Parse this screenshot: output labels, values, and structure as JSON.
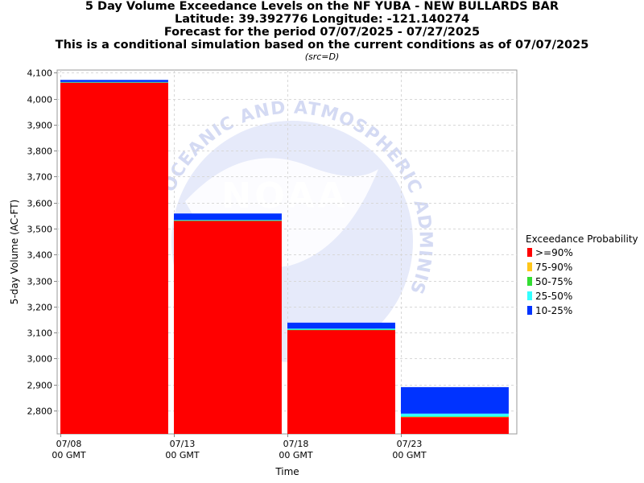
{
  "header": {
    "title_lines": [
      "5 Day Volume Exceedance Levels on the NF YUBA - NEW BULLARDS BAR",
      "Latitude: 39.392776 Longitude: -121.140274",
      "Forecast for the period 07/07/2025 - 07/27/2025",
      "This is a conditional simulation based on the current conditions as of 07/07/2025"
    ],
    "source_note": "(src=D)"
  },
  "watermark": {
    "logo_text": "NOAA",
    "ring_text": "OCEANIC AND ATMOSPHERIC ADMINISTRATION"
  },
  "chart_data": {
    "type": "bar",
    "stacked": true,
    "xlabel": "Time",
    "ylabel": "5-day Volume (AC-FT)",
    "ylim": [
      2710,
      4110
    ],
    "yticks": [
      2800,
      2900,
      3000,
      3100,
      3200,
      3300,
      3400,
      3500,
      3600,
      3700,
      3800,
      3900,
      4000,
      4100
    ],
    "ytick_labels": [
      "2,800",
      "2,900",
      "3,000",
      "3,100",
      "3,200",
      "3,300",
      "3,400",
      "3,500",
      "3,600",
      "3,700",
      "3,800",
      "3,900",
      "4,000",
      "4,100"
    ],
    "xticks": [
      {
        "label": "07/08",
        "sub": "00 GMT"
      },
      {
        "label": "07/13",
        "sub": "00 GMT"
      },
      {
        "label": "07/18",
        "sub": "00 GMT"
      },
      {
        "label": "07/23",
        "sub": "00 GMT"
      }
    ],
    "x_range_days": [
      0,
      20
    ],
    "bar_start_days": [
      0,
      5,
      10,
      15
    ],
    "bar_width_days": 4.75,
    "grid": true,
    "legend_title": "Exceedance Probability",
    "legend_position": "right",
    "series": [
      {
        "name": ">=90%",
        "color": "#ff0000",
        "levels": [
          4062,
          3530,
          3110,
          2775
        ]
      },
      {
        "name": "75-90%",
        "color": "#ffc61a",
        "levels": [
          4062,
          3530,
          3110,
          2776
        ]
      },
      {
        "name": "50-75%",
        "color": "#33dd33",
        "levels": [
          4063,
          3531,
          3111,
          2777
        ]
      },
      {
        "name": "25-50%",
        "color": "#33ffff",
        "levels": [
          4064,
          3533,
          3115,
          2788
        ]
      },
      {
        "name": "10-25%",
        "color": "#0033ff",
        "levels": [
          4072,
          3558,
          3138,
          2890
        ]
      }
    ]
  }
}
